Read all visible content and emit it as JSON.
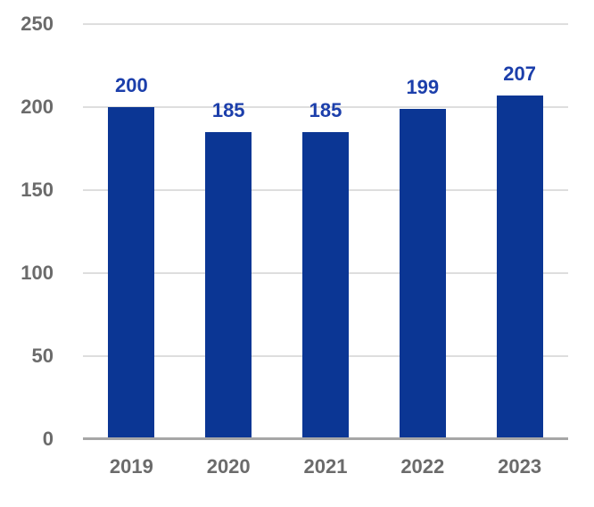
{
  "chart_data": {
    "type": "bar",
    "title": "",
    "xlabel": "",
    "ylabel": "",
    "categories": [
      "2019",
      "2020",
      "2021",
      "2022",
      "2023"
    ],
    "values": [
      200,
      185,
      185,
      199,
      207
    ],
    "data_labels": [
      "200",
      "185",
      "185",
      "199",
      "207"
    ],
    "ylim": [
      0,
      250
    ],
    "yticks": [
      0,
      50,
      100,
      150,
      200,
      250
    ],
    "ytick_labels": [
      "0",
      "50",
      "100",
      "150",
      "200",
      "250"
    ],
    "grid": true,
    "legend": false,
    "colors": {
      "bar": "#0b3694",
      "data_label": "#1c3fab",
      "axis_text": "#6b6b6b",
      "gridline": "#dedede",
      "axis_line": "#a6a6a6",
      "background": "#ffffff"
    }
  }
}
